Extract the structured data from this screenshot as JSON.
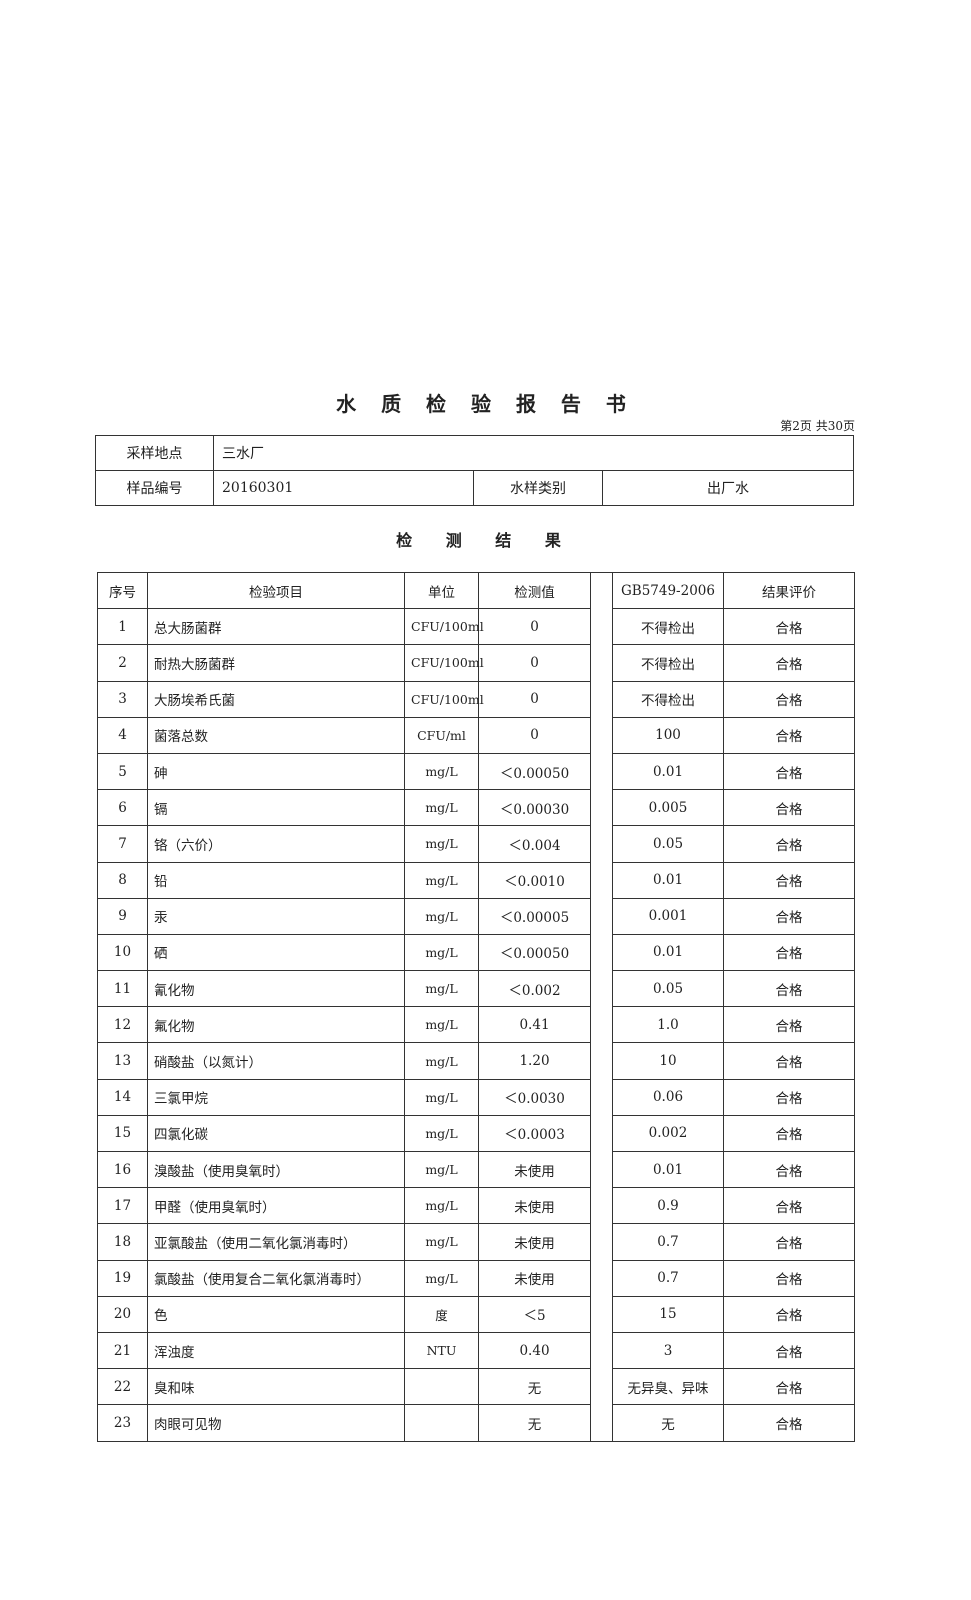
{
  "title": "水 质 检 验 报 告 书",
  "page_number": "第2页  共30页",
  "info": {
    "site_label": "采样地点",
    "site_value": "三水厂",
    "sample_no_label": "样品编号",
    "sample_no_value": "20160301",
    "type_label": "水样类别",
    "type_value": "出厂水"
  },
  "section_title": "检 测 结 果",
  "table": {
    "headers": [
      "序号",
      "检验项目",
      "单位",
      "检测值",
      "GB5749-2006",
      "结果评价"
    ],
    "rows": [
      [
        "1",
        "总大肠菌群",
        "CFU/100ml",
        "0",
        "不得检出",
        "合格"
      ],
      [
        "2",
        "耐热大肠菌群",
        "CFU/100ml",
        "0",
        "不得检出",
        "合格"
      ],
      [
        "3",
        "大肠埃希氏菌",
        "CFU/100ml",
        "0",
        "不得检出",
        "合格"
      ],
      [
        "4",
        "菌落总数",
        "CFU/ml",
        "0",
        "100",
        "合格"
      ],
      [
        "5",
        "砷",
        "mg/L",
        "＜0.00050",
        "0.01",
        "合格"
      ],
      [
        "6",
        "镉",
        "mg/L",
        "＜0.00030",
        "0.005",
        "合格"
      ],
      [
        "7",
        "铬（六价）",
        "mg/L",
        "＜0.004",
        "0.05",
        "合格"
      ],
      [
        "8",
        "铅",
        "mg/L",
        "＜0.0010",
        "0.01",
        "合格"
      ],
      [
        "9",
        "汞",
        "mg/L",
        "＜0.00005",
        "0.001",
        "合格"
      ],
      [
        "10",
        "硒",
        "mg/L",
        "＜0.00050",
        "0.01",
        "合格"
      ],
      [
        "11",
        "氰化物",
        "mg/L",
        "＜0.002",
        "0.05",
        "合格"
      ],
      [
        "12",
        "氟化物",
        "mg/L",
        "0.41",
        "1.0",
        "合格"
      ],
      [
        "13",
        "硝酸盐（以氮计）",
        "mg/L",
        "1.20",
        "10",
        "合格"
      ],
      [
        "14",
        "三氯甲烷",
        "mg/L",
        "＜0.0030",
        "0.06",
        "合格"
      ],
      [
        "15",
        "四氯化碳",
        "mg/L",
        "＜0.0003",
        "0.002",
        "合格"
      ],
      [
        "16",
        "溴酸盐（使用臭氧时）",
        "mg/L",
        "未使用",
        "0.01",
        "合格"
      ],
      [
        "17",
        "甲醛（使用臭氧时）",
        "mg/L",
        "未使用",
        "0.9",
        "合格"
      ],
      [
        "18",
        "亚氯酸盐（使用二氧化氯消毒时）",
        "mg/L",
        "未使用",
        "0.7",
        "合格"
      ],
      [
        "19",
        "氯酸盐（使用复合二氧化氯消毒时）",
        "mg/L",
        "未使用",
        "0.7",
        "合格"
      ],
      [
        "20",
        "色",
        "度",
        "＜5",
        "15",
        "合格"
      ],
      [
        "21",
        "浑浊度",
        "NTU",
        "0.40",
        "3",
        "合格"
      ],
      [
        "22",
        "臭和味",
        "",
        "无",
        "无异臭、异味",
        "合格"
      ],
      [
        "23",
        "肉眼可见物",
        "",
        "无",
        "无",
        "合格"
      ]
    ]
  }
}
